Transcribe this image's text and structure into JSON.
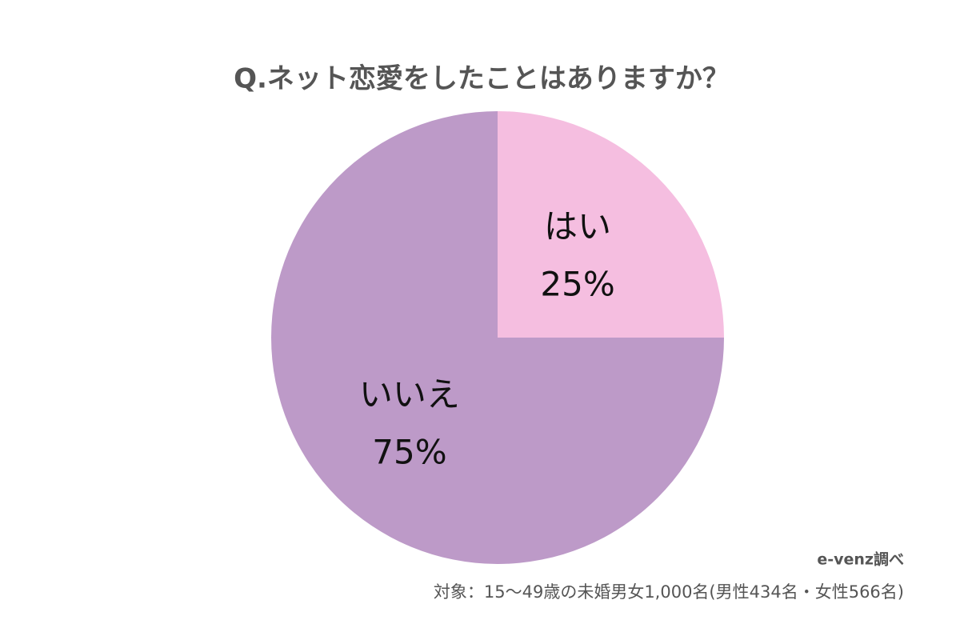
{
  "chart_data": {
    "type": "pie",
    "title": "Q.ネット恋愛をしたことはありますか？",
    "categories": [
      "はい",
      "いいえ"
    ],
    "values": [
      25,
      75
    ],
    "value_labels": [
      "25%",
      "75%"
    ],
    "colors": [
      "#f5bee0",
      "#bd9ac8"
    ],
    "source": "e-venz調べ",
    "note": "対象：15〜49歳の未婚男女1,000名(男性434名・女性566名)"
  }
}
